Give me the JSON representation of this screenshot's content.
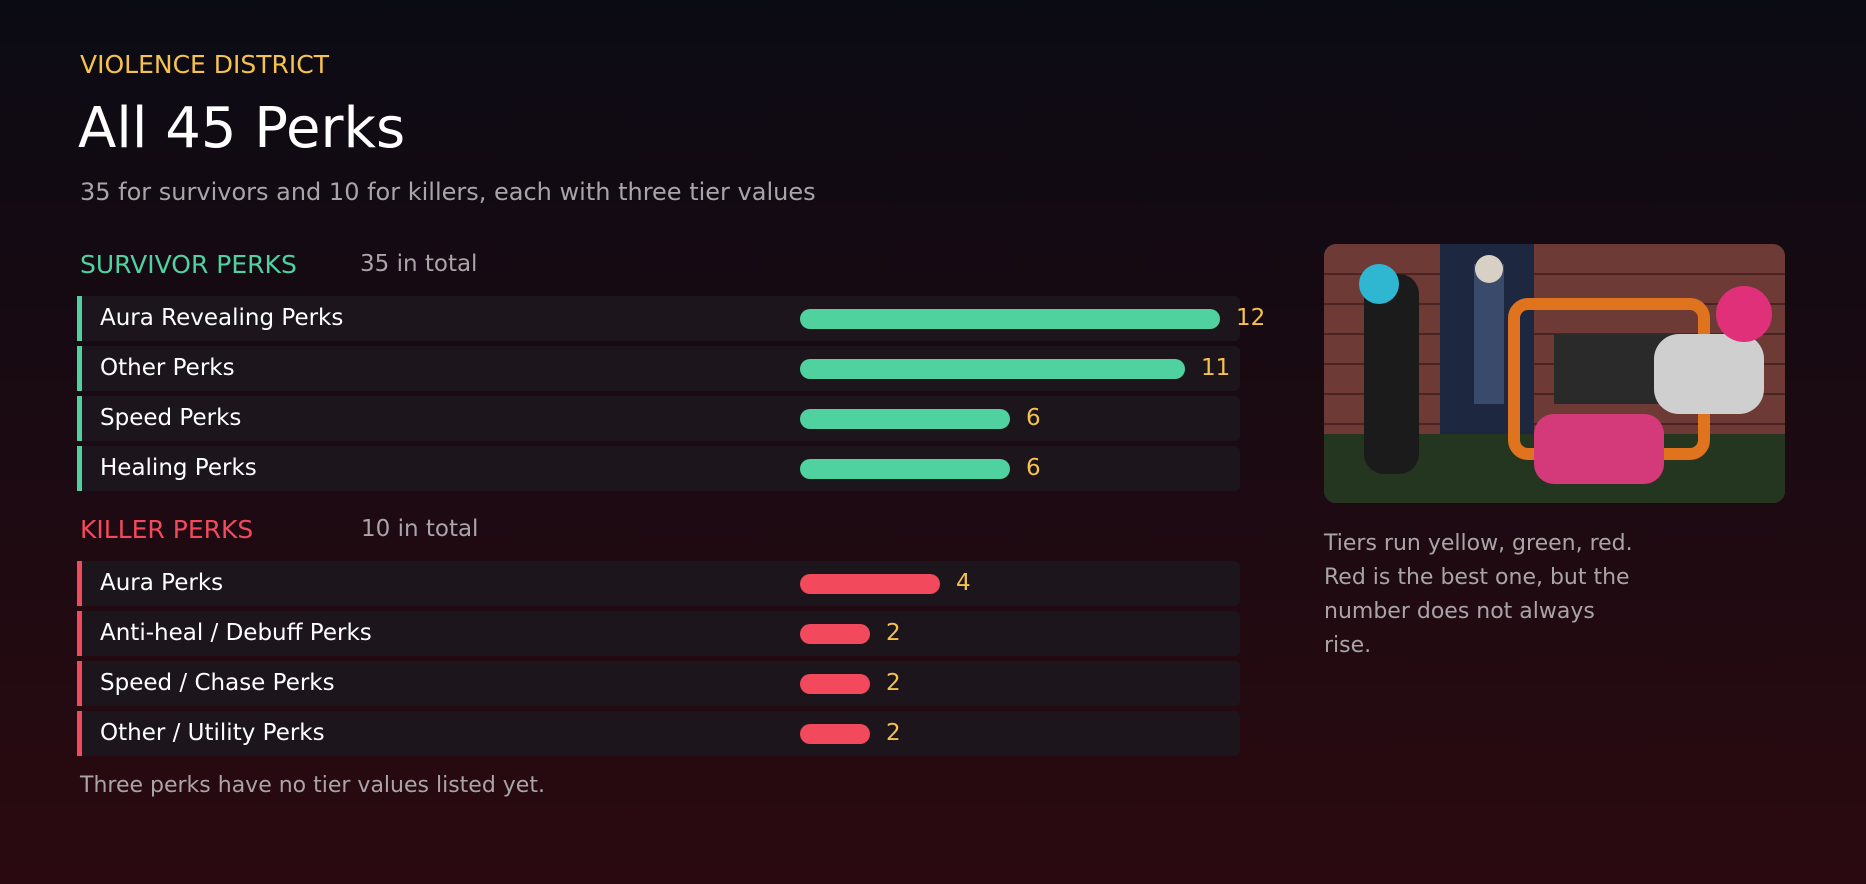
{
  "header": {
    "eyebrow": "VIOLENCE DISTRICT",
    "title": "All 45 Perks",
    "subtitle": "35 for survivors and 10 for killers, each with three tier values"
  },
  "groups": [
    {
      "name": "SURVIVOR PERKS",
      "total": "35 in total",
      "color": "#4fd1a0",
      "rows": [
        {
          "label": "Aura Revealing Perks",
          "value": 12
        },
        {
          "label": "Other Perks",
          "value": 11
        },
        {
          "label": "Speed Perks",
          "value": 6
        },
        {
          "label": "Healing Perks",
          "value": 6
        }
      ]
    },
    {
      "name": "KILLER PERKS",
      "total": "10 in total",
      "color": "#f2495c",
      "rows": [
        {
          "label": "Aura Perks",
          "value": 4
        },
        {
          "label": "Anti-heal / Debuff Perks",
          "value": 2
        },
        {
          "label": "Speed / Chase Perks",
          "value": 2
        },
        {
          "label": "Other / Utility Perks",
          "value": 2
        }
      ]
    }
  ],
  "footnote": "Three perks have no tier values listed yet.",
  "aside": "Tiers run yellow, green, red. Red is the best one, but the number does not always rise."
}
